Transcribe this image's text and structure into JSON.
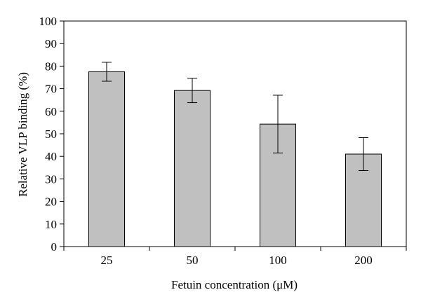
{
  "chart_data": {
    "type": "bar",
    "title": "",
    "xlabel": "Fetuin concentration (μM)",
    "ylabel": "Relative VLP binding (%)",
    "categories": [
      "25",
      "50",
      "100",
      "200"
    ],
    "values": [
      77.5,
      69.2,
      54.3,
      41.0
    ],
    "error": [
      4.2,
      5.4,
      12.8,
      7.3
    ],
    "ylim": [
      0,
      100
    ],
    "yticks": [
      0,
      10,
      20,
      30,
      40,
      50,
      60,
      70,
      80,
      90,
      100
    ],
    "grid": false,
    "legend": "none",
    "bar_color": "#c0c0c0",
    "bar_edge_color": "#000000"
  }
}
